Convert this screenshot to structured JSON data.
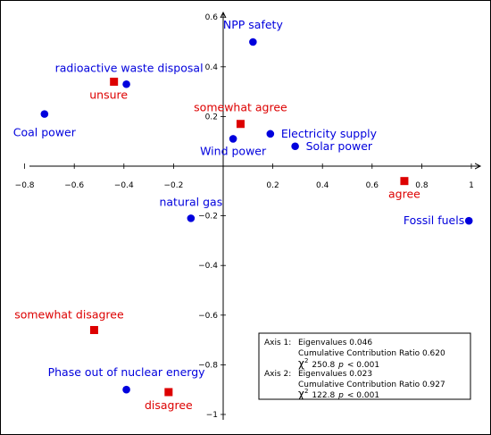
{
  "chart_data": {
    "type": "scatter",
    "xlim": [
      -0.85,
      1.0
    ],
    "ylim": [
      -1.0,
      0.6
    ],
    "x_ticks": [
      "−0.8",
      "−0.6",
      "−0.4",
      "−0.2",
      "0.2",
      "0.4",
      "0.6",
      "0.8",
      "1"
    ],
    "y_ticks": [
      "0.6",
      "0.4",
      "0.2",
      "−0.2",
      "−0.4",
      "−0.6",
      "−0.8",
      "−1"
    ],
    "grid": false,
    "colors": {
      "items": "#0000dd",
      "responses": "#dd0000"
    },
    "series": [
      {
        "marker": "circle",
        "points": [
          {
            "label": "NPP safety",
            "x": 0.12,
            "y": 0.5
          },
          {
            "label": "radioactive waste disposal",
            "x": -0.39,
            "y": 0.33
          },
          {
            "label": "Coal power",
            "x": -0.72,
            "y": 0.21
          },
          {
            "label": "Electricity supply",
            "x": 0.19,
            "y": 0.13
          },
          {
            "label": "Wind power",
            "x": 0.04,
            "y": 0.11
          },
          {
            "label": "Solar power",
            "x": 0.29,
            "y": 0.08
          },
          {
            "label": "natural gas",
            "x": -0.13,
            "y": -0.21
          },
          {
            "label": "Fossil fuels",
            "x": 0.99,
            "y": -0.22
          },
          {
            "label": "Phase out of nuclear energy",
            "x": -0.39,
            "y": -0.9
          }
        ]
      },
      {
        "marker": "square",
        "points": [
          {
            "label": "unsure",
            "x": -0.44,
            "y": 0.34
          },
          {
            "label": "somewhat agree",
            "x": 0.07,
            "y": 0.17
          },
          {
            "label": "agree",
            "x": 0.73,
            "y": -0.06
          },
          {
            "label": "somewhat disagree",
            "x": -0.52,
            "y": -0.66
          },
          {
            "label": "disagree",
            "x": -0.22,
            "y": -0.91
          }
        ]
      }
    ],
    "annotations": {
      "axis1_label": "Axis 1:",
      "axis1_eigen": "Eigenvalues 0.046",
      "axis1_ratio": "Cumulative Contribution Ratio 0.620",
      "axis1_chi": "250.8",
      "axis2_label": "Axis 2:",
      "axis2_eigen": "Eigenvalues 0.023",
      "axis2_ratio": "Cumulative Contribution Ratio 0.927",
      "axis2_chi": "122.8",
      "chi_symbol": "χ",
      "chi_exp": "2",
      "p_text": "p",
      "p_rel": "< 0.001"
    }
  }
}
